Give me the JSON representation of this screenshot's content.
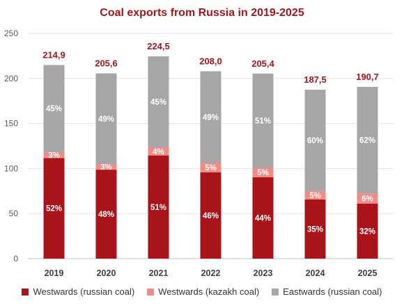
{
  "chart_data": {
    "type": "bar",
    "stacked": true,
    "title": "Coal exports from Russia in 2019-2025",
    "xlabel": "",
    "ylabel": "",
    "ylim": [
      0,
      250
    ],
    "yticks": [
      0,
      50,
      100,
      150,
      200,
      250
    ],
    "grid": true,
    "legend_position": "bottom",
    "categories": [
      "2019",
      "2020",
      "2021",
      "2022",
      "2023",
      "2024",
      "2025"
    ],
    "totals": [
      214.9,
      205.6,
      224.5,
      208.0,
      205.4,
      187.5,
      190.7
    ],
    "total_labels": [
      "214,9",
      "205,6",
      "224,5",
      "208,0",
      "205,4",
      "187,5",
      "190,7"
    ],
    "series": [
      {
        "name": "Westwards (russian coal)",
        "color": "#a8141a",
        "label_color": "#ffffff",
        "values": [
          111.7,
          98.7,
          114.5,
          95.7,
          90.4,
          65.6,
          61.0
        ],
        "labels": [
          "52%",
          "48%",
          "51%",
          "46%",
          "44%",
          "35%",
          "32%"
        ]
      },
      {
        "name": "Westwards (kazakh coal)",
        "color": "#f08c84",
        "label_color": "#ffffff",
        "values": [
          6.4,
          6.2,
          9.0,
          10.4,
          10.3,
          9.4,
          11.4
        ],
        "labels": [
          "3%",
          "3%",
          "4%",
          "5%",
          "5%",
          "5%",
          "6%"
        ]
      },
      {
        "name": "Eastwards (russian coal)",
        "color": "#a6a6a6",
        "label_color": "#ffffff",
        "values": [
          96.8,
          100.7,
          101.0,
          101.9,
          104.7,
          112.5,
          118.3
        ],
        "labels": [
          "45%",
          "49%",
          "45%",
          "49%",
          "51%",
          "60%",
          "62%"
        ]
      }
    ]
  }
}
